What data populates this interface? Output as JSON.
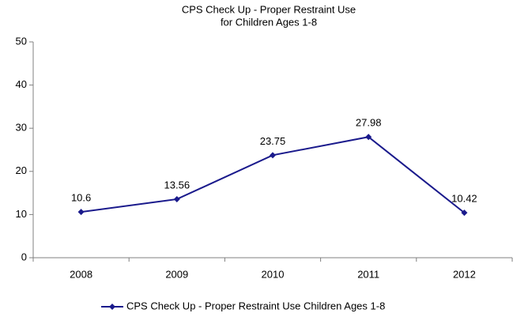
{
  "chart_data": {
    "type": "line",
    "title": [
      "CPS Check Up - Proper Restraint Use",
      "for Children Ages 1-8"
    ],
    "categories": [
      "2008",
      "2009",
      "2010",
      "2011",
      "2012"
    ],
    "series": [
      {
        "name": "CPS Check Up - Proper Restraint Use Children Ages 1-8",
        "color": "#1a1a8c",
        "values": [
          10.6,
          13.56,
          23.75,
          27.98,
          10.42
        ]
      }
    ],
    "ylim": [
      0,
      50
    ],
    "yticks": [
      0,
      10,
      20,
      30,
      40,
      50
    ],
    "grid": false,
    "legend": "bottom"
  }
}
